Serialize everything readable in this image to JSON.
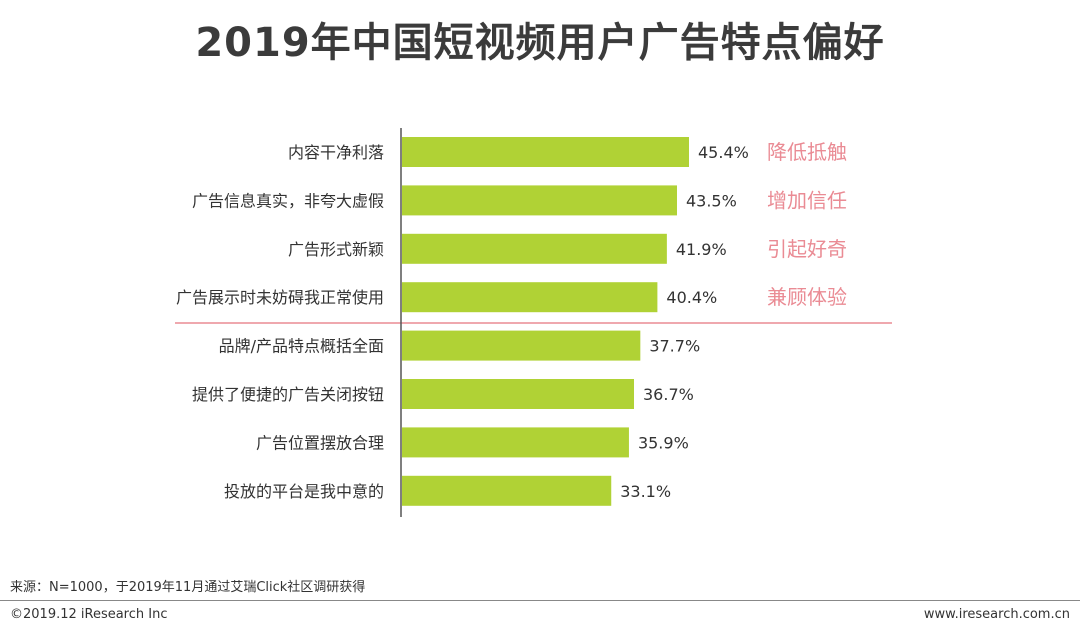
{
  "title": "2019年中国短视频用户广告特点偏好",
  "chart_data": {
    "type": "bar",
    "orientation": "horizontal",
    "title": "2019年中国短视频用户广告特点偏好",
    "categories": [
      "内容干净利落",
      "广告信息真实，非夸大虚假",
      "广告形式新颖",
      "广告展示时未妨碍我正常使用",
      "品牌/产品特点概括全面",
      "提供了便捷的广告关闭按钮",
      "广告位置摆放合理",
      "投放的平台是我中意的"
    ],
    "values": [
      45.4,
      43.5,
      41.9,
      40.4,
      37.7,
      36.7,
      35.9,
      33.1
    ],
    "value_labels": [
      "45.4%",
      "43.5%",
      "41.9%",
      "40.4%",
      "37.7%",
      "36.7%",
      "35.9%",
      "33.1%"
    ],
    "annotations": [
      "降低抵触",
      "增加信任",
      "引起好奇",
      "兼顾体验"
    ],
    "divider_after_index": 3,
    "xlim": [
      0,
      100
    ],
    "grid": false,
    "colors": {
      "bar": "#b0d235",
      "annotation": "#ea8b94",
      "divider": "#ea8b94",
      "axis": "#555555"
    }
  },
  "footer": {
    "source": "来源：N=1000，于2019年11月通过艾瑞Click社区调研获得",
    "copyright": "©2019.12 iResearch Inc",
    "website": "www.iresearch.com.cn"
  }
}
